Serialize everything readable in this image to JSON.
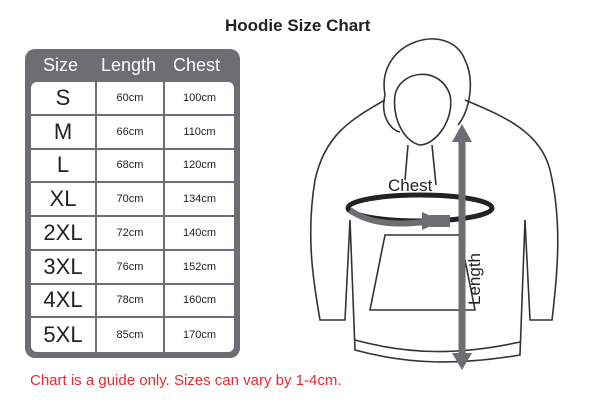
{
  "title": "Hoodie Size Chart",
  "table": {
    "headers": [
      "Size",
      "Length",
      "Chest"
    ],
    "rows": [
      [
        "S",
        "60cm",
        "100cm"
      ],
      [
        "M",
        "66cm",
        "110cm"
      ],
      [
        "L",
        "68cm",
        "120cm"
      ],
      [
        "XL",
        "70cm",
        "134cm"
      ],
      [
        "2XL",
        "72cm",
        "140cm"
      ],
      [
        "3XL",
        "76cm",
        "152cm"
      ],
      [
        "4XL",
        "78cm",
        "160cm"
      ],
      [
        "5XL",
        "85cm",
        "170cm"
      ]
    ]
  },
  "diagram": {
    "chest_label": "Chest",
    "length_label": "Length"
  },
  "note": "Chart is a guide only. Sizes can vary by 1-4cm.",
  "colors": {
    "table_frame": "#6d6e71",
    "note": "#e8282b",
    "arrow": "#6d6e71"
  }
}
